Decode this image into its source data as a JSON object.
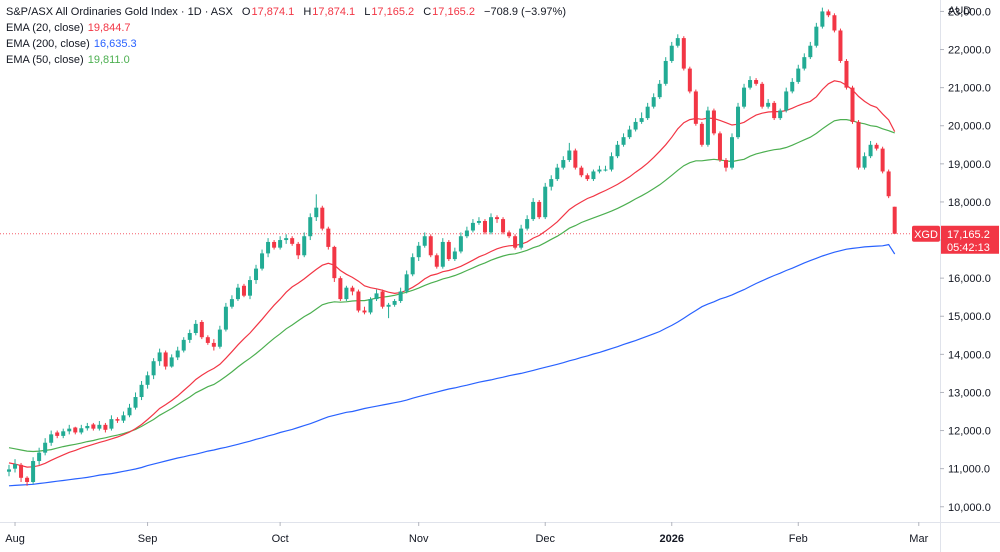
{
  "header": {
    "symbol_line": "S&P/ASX All Ordinaries Gold Index · 1D · ASX",
    "o_label": "O",
    "o_value": "17,874.1",
    "h_label": "H",
    "h_value": "17,874.1",
    "l_label": "L",
    "l_value": "17,165.2",
    "c_label": "C",
    "c_value": "17,165.2",
    "change": "−708.9 (−3.97%)"
  },
  "indicators": [
    {
      "label": "EMA (20, close)",
      "value": "19,844.7",
      "color": "#f23645"
    },
    {
      "label": "EMA (200, close)",
      "value": "16,635.3",
      "color": "#2962ff"
    },
    {
      "label": "EMA (50, close)",
      "value": "19,811.0",
      "color": "#4caf50"
    }
  ],
  "currency": "AUD",
  "last_price": {
    "ticker": "XGD",
    "value": "17,165.2",
    "countdown": "05:42:13",
    "color": "#f23645"
  },
  "chart_data": {
    "type": "candlestick",
    "title": "S&P/ASX All Ordinaries Gold Index · 1D · ASX",
    "ylabel": "AUD",
    "ylim": [
      9600,
      23300
    ],
    "y_ticks": [
      "10,000.0",
      "11,000.0",
      "12,000.0",
      "13,000.0",
      "14,000.0",
      "15,000.0",
      "16,000.0",
      "17,000.0",
      "18,000.0",
      "19,000.0",
      "20,000.0",
      "21,000.0",
      "22,000.0",
      "23,000.0"
    ],
    "y_tick_values": [
      10000,
      11000,
      12000,
      13000,
      14000,
      15000,
      16000,
      17000,
      18000,
      19000,
      20000,
      21000,
      22000,
      23000
    ],
    "x_ticks": [
      {
        "label": "Aug",
        "bar": 1
      },
      {
        "label": "Sep",
        "bar": 23
      },
      {
        "label": "Oct",
        "bar": 45
      },
      {
        "label": "Nov",
        "bar": 68
      },
      {
        "label": "Dec",
        "bar": 89
      },
      {
        "label": "2026",
        "bar": 110,
        "bold": true
      },
      {
        "label": "Feb",
        "bar": 131
      },
      {
        "label": "Mar",
        "bar": 151
      }
    ],
    "up_color": "#22ab94",
    "down_color": "#f23645",
    "closes": [
      10980,
      11120,
      10760,
      10650,
      11200,
      11420,
      11680,
      11900,
      11860,
      11980,
      12050,
      11950,
      12060,
      12120,
      12050,
      12150,
      12020,
      12300,
      12260,
      12400,
      12600,
      12880,
      13200,
      13450,
      13820,
      14050,
      13680,
      13920,
      14100,
      14380,
      14560,
      14800,
      14450,
      14300,
      14200,
      14650,
      15250,
      15450,
      15750,
      15540,
      15950,
      16250,
      16650,
      16950,
      16800,
      17000,
      17050,
      16900,
      16600,
      17100,
      17600,
      17850,
      17300,
      16820,
      16000,
      15450,
      15750,
      15650,
      15150,
      15100,
      15450,
      15600,
      15250,
      15300,
      15400,
      15650,
      16100,
      16550,
      16850,
      17100,
      16600,
      16300,
      16950,
      16500,
      16700,
      17100,
      17250,
      17450,
      17500,
      17200,
      17600,
      17550,
      17200,
      17100,
      16800,
      17300,
      17550,
      18000,
      17600,
      18400,
      18600,
      18900,
      19100,
      19350,
      18900,
      18700,
      18600,
      18800,
      18850,
      18850,
      19200,
      19500,
      19700,
      19900,
      20100,
      20200,
      20500,
      20750,
      21100,
      21700,
      22100,
      22300,
      21500,
      20900,
      20050,
      19500,
      20400,
      19800,
      19100,
      18900,
      19700,
      20500,
      21000,
      21200,
      21100,
      20500,
      20600,
      20200,
      20400,
      20900,
      21150,
      21500,
      21800,
      22100,
      22600,
      23000,
      22900,
      22500,
      21700,
      21000,
      20100,
      18900,
      19200,
      19500,
      19400,
      18800,
      18150,
      17165
    ],
    "opens": [
      10920,
      11000,
      11100,
      10760,
      10650,
      11200,
      11420,
      11680,
      11950,
      11860,
      11980,
      12080,
      11950,
      12060,
      12160,
      12050,
      12150,
      12050,
      12300,
      12260,
      12400,
      12600,
      12880,
      13200,
      13450,
      13820,
      14050,
      13680,
      13920,
      14100,
      14380,
      14560,
      14850,
      14450,
      14300,
      14200,
      14650,
      15250,
      15450,
      15800,
      15540,
      15950,
      16250,
      16650,
      16950,
      16800,
      17000,
      17050,
      16900,
      16600,
      17100,
      17600,
      17850,
      17300,
      16820,
      16000,
      15450,
      15750,
      15650,
      15150,
      15100,
      15450,
      15650,
      15250,
      15300,
      15400,
      15650,
      16100,
      16550,
      16850,
      17100,
      16600,
      16300,
      16950,
      16500,
      16700,
      17100,
      17250,
      17450,
      17500,
      17200,
      17600,
      17550,
      17200,
      17100,
      16800,
      17300,
      17550,
      18000,
      17600,
      18400,
      18600,
      18900,
      19100,
      19350,
      18900,
      18700,
      18600,
      18800,
      18850,
      18850,
      19200,
      19500,
      19700,
      19900,
      20100,
      20200,
      20500,
      20750,
      21100,
      21700,
      22100,
      22300,
      21500,
      20900,
      20050,
      19500,
      20400,
      19800,
      19100,
      18900,
      19700,
      20500,
      21000,
      21200,
      21100,
      20500,
      20600,
      20200,
      20400,
      20900,
      21150,
      21500,
      21800,
      22100,
      22600,
      23000,
      22900,
      22500,
      21700,
      21000,
      20100,
      18900,
      19200,
      19500,
      19400,
      18800,
      17874
    ],
    "highs": [
      11100,
      11250,
      11150,
      10800,
      11300,
      11550,
      11800,
      12000,
      12000,
      12050,
      12150,
      12100,
      12150,
      12200,
      12200,
      12250,
      12200,
      12400,
      12350,
      12500,
      12700,
      13000,
      13300,
      13550,
      13900,
      14150,
      14100,
      14000,
      14200,
      14450,
      14650,
      14900,
      14900,
      14500,
      14400,
      14750,
      15350,
      15550,
      15850,
      15850,
      16050,
      16350,
      16750,
      17050,
      17000,
      17100,
      17150,
      17100,
      16950,
      17200,
      17700,
      18200,
      17900,
      17350,
      16850,
      16050,
      15800,
      15800,
      15700,
      15250,
      15500,
      15700,
      15700,
      15350,
      15450,
      15750,
      16200,
      16650,
      16950,
      17200,
      17150,
      16650,
      17050,
      17000,
      16800,
      17200,
      17350,
      17550,
      17600,
      17550,
      17700,
      17650,
      17600,
      17250,
      17150,
      17400,
      17650,
      18100,
      18050,
      18500,
      18700,
      19000,
      19200,
      19550,
      19400,
      18950,
      18750,
      18850,
      18950,
      18950,
      19300,
      19600,
      19800,
      20000,
      20200,
      20350,
      20600,
      20850,
      21200,
      21800,
      22200,
      22400,
      22350,
      21550,
      20950,
      20100,
      20500,
      20450,
      19850,
      19150,
      19800,
      20600,
      21100,
      21300,
      21250,
      21150,
      20700,
      20650,
      20450,
      21000,
      21250,
      21600,
      21900,
      22200,
      22700,
      23100,
      23050,
      22950,
      22550,
      21750,
      21050,
      20150,
      19300,
      19600,
      19550,
      19450,
      18850,
      17874
    ],
    "lows": [
      10800,
      10900,
      10650,
      10550,
      10600,
      11100,
      11350,
      11600,
      11800,
      11800,
      11900,
      11900,
      11900,
      12000,
      12000,
      12000,
      11950,
      12000,
      12200,
      12200,
      12350,
      12550,
      12800,
      13100,
      13350,
      13700,
      13600,
      13650,
      13850,
      14050,
      14300,
      14500,
      14400,
      14250,
      14100,
      14150,
      14600,
      15200,
      15400,
      15500,
      15450,
      15850,
      16200,
      16550,
      16750,
      16750,
      16900,
      16850,
      16500,
      16550,
      17000,
      17500,
      17250,
      16750,
      15900,
      15400,
      15400,
      15550,
      15100,
      15050,
      15050,
      15400,
      15200,
      14950,
      15250,
      15350,
      15600,
      16050,
      16450,
      16800,
      16550,
      16250,
      16250,
      16450,
      16450,
      16650,
      17050,
      17200,
      17400,
      17150,
      17150,
      17450,
      17150,
      17050,
      16750,
      16750,
      17250,
      17500,
      17550,
      17550,
      18300,
      18550,
      18850,
      19050,
      18850,
      18650,
      18550,
      18550,
      18750,
      18800,
      18800,
      19150,
      19450,
      19650,
      19850,
      20050,
      20150,
      20450,
      20700,
      21050,
      21650,
      22050,
      21450,
      20850,
      20000,
      19450,
      19450,
      19750,
      19050,
      18800,
      18850,
      19650,
      20450,
      20950,
      21050,
      20450,
      20450,
      20150,
      20150,
      20350,
      20850,
      21100,
      21450,
      21750,
      22050,
      22550,
      22850,
      22450,
      21650,
      20950,
      20050,
      18850,
      18850,
      19150,
      19350,
      18750,
      18100,
      17165
    ],
    "ema20": [
      11150,
      11120,
      11080,
      11040,
      11050,
      11080,
      11140,
      11220,
      11290,
      11360,
      11430,
      11480,
      11540,
      11590,
      11640,
      11690,
      11730,
      11780,
      11830,
      11890,
      11960,
      12050,
      12160,
      12290,
      12430,
      12580,
      12680,
      12790,
      12910,
      13050,
      13190,
      13340,
      13450,
      13550,
      13630,
      13740,
      13900,
      14070,
      14250,
      14410,
      14560,
      14740,
      14920,
      15110,
      15290,
      15450,
      15630,
      15770,
      15870,
      15980,
      16110,
      16230,
      16340,
      16390,
      16340,
      16200,
      16100,
      16020,
      15920,
      15800,
      15750,
      15720,
      15680,
      15630,
      15600,
      15620,
      15680,
      15760,
      15860,
      15980,
      16070,
      16110,
      16170,
      16200,
      16250,
      16310,
      16390,
      16470,
      16560,
      16620,
      16700,
      16770,
      16820,
      16850,
      16860,
      16890,
      16950,
      17050,
      17120,
      17230,
      17350,
      17480,
      17640,
      17800,
      17910,
      18000,
      18090,
      18150,
      18230,
      18300,
      18380,
      18460,
      18560,
      18660,
      18780,
      18890,
      19020,
      19170,
      19330,
      19500,
      19700,
      19920,
      20080,
      20160,
      20190,
      20170,
      20200,
      20190,
      20140,
      20080,
      20020,
      20040,
      20090,
      20190,
      20280,
      20330,
      20360,
      20370,
      20370,
      20400,
      20460,
      20530,
      20590,
      20640,
      20760,
      20950,
      21100,
      21180,
      21150,
      21060,
      20940,
      20770,
      20640,
      20540,
      20480,
      20310,
      20150,
      19845
    ],
    "ema50": [
      11550,
      11520,
      11490,
      11460,
      11450,
      11460,
      11480,
      11500,
      11540,
      11580,
      11610,
      11640,
      11670,
      11710,
      11740,
      11780,
      11810,
      11850,
      11880,
      11920,
      11970,
      12030,
      12110,
      12200,
      12290,
      12400,
      12490,
      12580,
      12680,
      12780,
      12880,
      12990,
      13070,
      13150,
      13210,
      13310,
      13420,
      13540,
      13670,
      13790,
      13900,
      14020,
      14150,
      14290,
      14420,
      14540,
      14670,
      14770,
      14880,
      14990,
      15080,
      15190,
      15300,
      15350,
      15380,
      15370,
      15380,
      15400,
      15410,
      15410,
      15440,
      15480,
      15500,
      15520,
      15550,
      15590,
      15630,
      15680,
      15740,
      15810,
      15870,
      15920,
      15980,
      16020,
      16070,
      16130,
      16200,
      16270,
      16340,
      16400,
      16470,
      16530,
      16580,
      16620,
      16640,
      16680,
      16730,
      16800,
      16850,
      16930,
      17020,
      17100,
      17200,
      17310,
      17380,
      17460,
      17520,
      17580,
      17640,
      17700,
      17760,
      17830,
      17910,
      17990,
      18080,
      18160,
      18250,
      18350,
      18450,
      18570,
      18700,
      18830,
      18950,
      19030,
      19080,
      19080,
      19100,
      19120,
      19100,
      19080,
      19060,
      19090,
      19120,
      19200,
      19260,
      19300,
      19340,
      19370,
      19390,
      19430,
      19490,
      19560,
      19630,
      19700,
      19800,
      19920,
      20030,
      20130,
      20160,
      20160,
      20130,
      20080,
      20050,
      20000,
      19980,
      19920,
      19870,
      19811
    ],
    "ema200": [
      10550,
      10560,
      10570,
      10580,
      10590,
      10610,
      10630,
      10650,
      10670,
      10690,
      10710,
      10730,
      10750,
      10770,
      10800,
      10830,
      10850,
      10870,
      10900,
      10930,
      10960,
      10990,
      11030,
      11080,
      11120,
      11160,
      11200,
      11240,
      11280,
      11310,
      11350,
      11380,
      11420,
      11460,
      11490,
      11530,
      11560,
      11600,
      11640,
      11680,
      11720,
      11770,
      11810,
      11860,
      11900,
      11950,
      11990,
      12030,
      12080,
      12130,
      12180,
      12240,
      12300,
      12360,
      12400,
      12440,
      12480,
      12500,
      12540,
      12580,
      12610,
      12640,
      12670,
      12700,
      12730,
      12760,
      12800,
      12850,
      12890,
      12930,
      12970,
      13010,
      13050,
      13090,
      13120,
      13160,
      13190,
      13230,
      13270,
      13300,
      13330,
      13370,
      13400,
      13440,
      13470,
      13500,
      13540,
      13580,
      13620,
      13660,
      13700,
      13740,
      13780,
      13830,
      13870,
      13920,
      13960,
      14010,
      14050,
      14100,
      14150,
      14200,
      14260,
      14310,
      14360,
      14420,
      14480,
      14540,
      14600,
      14680,
      14760,
      14850,
      14950,
      15050,
      15150,
      15250,
      15320,
      15380,
      15450,
      15500,
      15560,
      15630,
      15700,
      15780,
      15860,
      15930,
      16000,
      16070,
      16130,
      16200,
      16260,
      16330,
      16400,
      16460,
      16520,
      16580,
      16630,
      16680,
      16720,
      16760,
      16780,
      16800,
      16820,
      16830,
      16840,
      16850,
      16880,
      16635
    ]
  }
}
